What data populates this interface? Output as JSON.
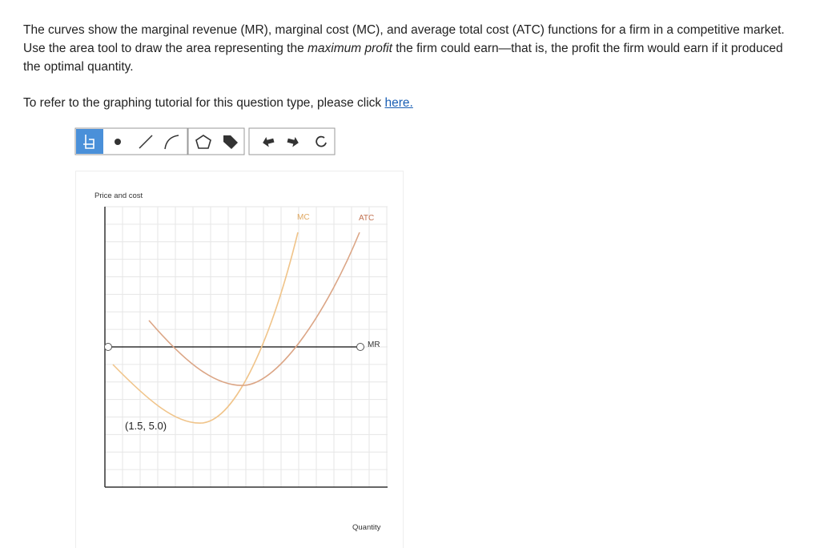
{
  "prompt": {
    "text_1": "The curves show the marginal revenue (MR), marginal cost (MC), and average total cost (ATC) functions for a firm in a competitive market. Use the area tool to draw the area representing the ",
    "emphasis": "maximum profit",
    "text_2": " the firm could earn—that is, the profit the firm would earn if it produced the optimal quantity."
  },
  "tutorial": {
    "text": "To refer to the graphing tutorial for this question type, please click ",
    "link": "here."
  },
  "graph": {
    "y_axis_label": "Price and cost",
    "x_axis_label": "Quantity",
    "curves": [
      {
        "label": "MC"
      },
      {
        "label": "ATC"
      },
      {
        "label": "MR"
      }
    ],
    "point_label": "(1.5, 5.0)"
  }
}
